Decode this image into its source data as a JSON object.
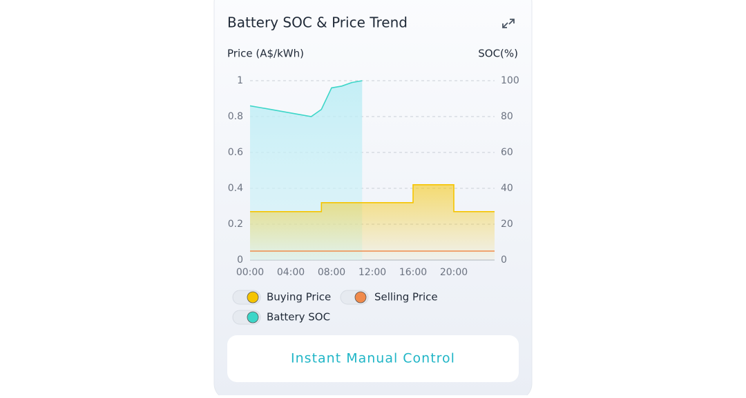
{
  "header": {
    "title": "Battery SOC & Price Trend"
  },
  "chart_data": {
    "type": "line",
    "ylabel": "Price (A$/kWh)",
    "y2label": "SOC(%)",
    "x": [
      0,
      1,
      2,
      3,
      4,
      5,
      6,
      7,
      8,
      9,
      10,
      11,
      12,
      13,
      14,
      15,
      16,
      17,
      18,
      19,
      20,
      21,
      22,
      23,
      24
    ],
    "xlim": [
      0,
      24
    ],
    "xticks": [
      {
        "value": 0,
        "label": "00:00"
      },
      {
        "value": 4,
        "label": "04:00"
      },
      {
        "value": 8,
        "label": "08:00"
      },
      {
        "value": 12,
        "label": "12:00"
      },
      {
        "value": 16,
        "label": "16:00"
      },
      {
        "value": 20,
        "label": "20:00"
      }
    ],
    "ylim": [
      0,
      1
    ],
    "yticks": [
      0,
      0.2,
      0.4,
      0.6,
      0.8,
      1
    ],
    "y2lim": [
      0,
      100
    ],
    "y2ticks": [
      0,
      20,
      40,
      60,
      80,
      100
    ],
    "grid": true,
    "series": [
      {
        "name": "Buying Price",
        "color": "#f5c400",
        "step": true,
        "area": true,
        "values": [
          0.27,
          0.27,
          0.27,
          0.27,
          0.27,
          0.27,
          0.27,
          0.32,
          0.32,
          0.32,
          0.32,
          0.32,
          0.32,
          0.32,
          0.32,
          0.32,
          0.42,
          0.42,
          0.42,
          0.42,
          0.27,
          0.27,
          0.27,
          0.27,
          0.27
        ]
      },
      {
        "name": "Selling Price",
        "color": "#f08a4b",
        "step": true,
        "area": false,
        "values": [
          0.05,
          0.05,
          0.05,
          0.05,
          0.05,
          0.05,
          0.05,
          0.05,
          0.05,
          0.05,
          0.05,
          0.05,
          0.05,
          0.05,
          0.05,
          0.05,
          0.05,
          0.05,
          0.05,
          0.05,
          0.05,
          0.05,
          0.05,
          0.05,
          0.05
        ]
      },
      {
        "name": "Battery SOC",
        "color": "#3dd6c8",
        "axis": "y2",
        "step": false,
        "area": true,
        "values": [
          86,
          85,
          84,
          83,
          82,
          81,
          80,
          84,
          96,
          97,
          99,
          100,
          null,
          null,
          null,
          null,
          null,
          null,
          null,
          null,
          null,
          null,
          null,
          null,
          null
        ]
      }
    ]
  },
  "button": {
    "label": "Instant Manual Control"
  }
}
